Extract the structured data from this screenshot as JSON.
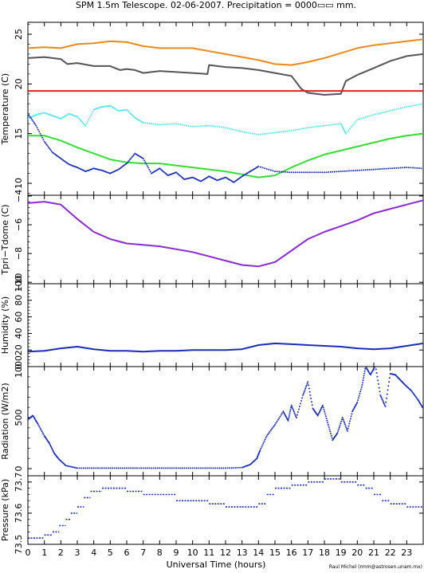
{
  "chart_data": {
    "title": "SPM 1.5m Telescope. 02-06-2007. Precipitation = 0000▭▭ mm.",
    "xlabel": "Universal Time (hours)",
    "credit": "Raul Michel (rmm@astrosen.unam.mx)",
    "xlim": [
      0,
      24
    ],
    "x_ticks": [
      0,
      1,
      2,
      3,
      4,
      5,
      6,
      7,
      8,
      9,
      10,
      11,
      12,
      13,
      14,
      15,
      16,
      17,
      18,
      19,
      20,
      21,
      22,
      23
    ],
    "x_tick_labels": [
      "0",
      "1",
      "2",
      "3",
      "4",
      "5",
      "6",
      "7",
      "8",
      "9",
      "10",
      "11",
      "12",
      "13",
      "14",
      "15",
      "16",
      "17",
      "18",
      "19",
      "20",
      "21",
      "22",
      "23"
    ],
    "panels": [
      {
        "id": "temperature",
        "type": "line",
        "ylabel": "Temperature (C)",
        "ylim": [
          8.8,
          26.2
        ],
        "y_ticks": [
          10,
          15,
          20,
          25
        ],
        "y_tick_labels": [
          "10",
          "15",
          "20",
          "25"
        ],
        "series": [
          {
            "color": "#e8891c",
            "style": "line",
            "x": [
              0,
              1,
              2,
              2.5,
              3,
              4,
              5,
              6,
              7,
              8,
              9,
              10,
              11,
              12,
              13,
              14,
              15,
              16,
              17,
              18,
              19,
              20,
              21,
              22,
              23,
              24
            ],
            "y": [
              23.6,
              23.7,
              23.6,
              23.8,
              24.0,
              24.1,
              24.3,
              24.2,
              23.8,
              23.6,
              23.6,
              23.6,
              23.3,
              23.0,
              22.7,
              22.4,
              22.0,
              21.9,
              22.2,
              22.6,
              23.1,
              23.6,
              23.9,
              24.1,
              24.3,
              24.5
            ]
          },
          {
            "color": "#555555",
            "style": "line",
            "x": [
              0,
              1,
              2,
              2.4,
              3,
              4,
              5,
              5.6,
              6,
              6.5,
              7,
              8,
              9,
              10,
              10.9,
              11,
              12,
              13,
              14,
              15,
              16,
              16.6,
              17,
              18,
              19,
              19.3,
              20,
              21,
              22,
              23,
              24
            ],
            "y": [
              22.6,
              22.7,
              22.5,
              22.0,
              22.1,
              21.8,
              21.8,
              21.4,
              21.5,
              21.4,
              21.1,
              21.3,
              21.2,
              21.1,
              21.0,
              21.9,
              21.7,
              21.6,
              21.4,
              21.1,
              20.8,
              19.5,
              19.1,
              18.9,
              19.0,
              20.3,
              20.9,
              21.6,
              22.3,
              22.8,
              23.0
            ]
          },
          {
            "color": "#dd2222",
            "style": "line",
            "x": [
              0,
              24
            ],
            "y": [
              19.3,
              19.3
            ]
          },
          {
            "color": "#55e6ea",
            "style": "dots",
            "x": [
              0,
              0.5,
              1,
              1.5,
              2,
              2.5,
              3,
              3.5,
              4,
              4.5,
              5,
              5.5,
              6,
              6.5,
              7,
              8,
              9,
              10,
              11,
              12,
              13,
              14,
              15,
              16,
              17,
              18,
              19,
              19.3,
              20,
              21,
              22,
              23,
              24
            ],
            "y": [
              16.5,
              16.9,
              17.1,
              16.8,
              16.5,
              17.0,
              16.7,
              15.8,
              17.4,
              17.7,
              17.8,
              17.3,
              17.4,
              16.6,
              16.1,
              15.9,
              16.0,
              15.7,
              15.8,
              15.6,
              15.2,
              14.9,
              15.1,
              15.3,
              15.6,
              15.8,
              16.0,
              15.0,
              16.4,
              16.9,
              17.3,
              17.7,
              18.0
            ]
          },
          {
            "color": "#33dd33",
            "style": "line",
            "x": [
              0,
              1,
              2,
              3,
              4,
              5,
              6,
              7,
              8,
              9,
              10,
              11,
              12,
              13,
              14,
              15,
              16,
              17,
              18,
              19,
              20,
              21,
              22,
              23,
              24
            ],
            "y": [
              14.8,
              14.8,
              14.3,
              13.6,
              13.0,
              12.4,
              12.1,
              12.0,
              12.0,
              11.8,
              11.6,
              11.4,
              11.2,
              10.9,
              10.6,
              10.8,
              11.6,
              12.3,
              12.9,
              13.3,
              13.7,
              14.1,
              14.5,
              14.8,
              15.0
            ]
          },
          {
            "color": "#1a2eb5",
            "style": "dots",
            "x": [
              0,
              0.5,
              1,
              1.5,
              2,
              2.5,
              3,
              3.5,
              4,
              4.5,
              5,
              5.5,
              6,
              6.5,
              7,
              7.5,
              8,
              8.5,
              9,
              9.5,
              10,
              10.5,
              11,
              11.5,
              12,
              12.5,
              13,
              13.5,
              14,
              15,
              16,
              17,
              18,
              19,
              20,
              21,
              22,
              23,
              24
            ],
            "y": [
              17.0,
              15.8,
              14.2,
              13.1,
              12.5,
              11.9,
              11.6,
              11.2,
              11.5,
              11.3,
              11.0,
              11.4,
              12.0,
              13.0,
              12.5,
              11.0,
              11.5,
              10.8,
              11.1,
              10.4,
              10.6,
              10.2,
              10.7,
              10.3,
              10.6,
              10.1,
              10.7,
              11.2,
              11.7,
              11.2,
              11.1,
              11.1,
              11.1,
              11.2,
              11.3,
              11.4,
              11.5,
              11.6,
              11.5
            ]
          }
        ]
      },
      {
        "id": "tdiff",
        "type": "line",
        "ylabel": "Tpri−Tdome (C)",
        "ylim": [
          -10.1,
          -3.95
        ],
        "y_ticks": [
          -10,
          -8,
          -6,
          -4
        ],
        "y_tick_labels": [
          "−10",
          "−8",
          "−6",
          "−4"
        ],
        "series": [
          {
            "color": "#8a2bd2",
            "style": "line",
            "x": [
              0,
              1,
              2,
              3,
              4,
              5,
              6,
              7,
              8,
              9,
              10,
              11,
              12,
              13,
              14,
              15,
              16,
              17,
              18,
              19,
              20,
              21,
              22,
              23,
              24
            ],
            "y": [
              -4.5,
              -4.4,
              -4.6,
              -5.6,
              -6.5,
              -7.0,
              -7.3,
              -7.4,
              -7.5,
              -7.7,
              -7.9,
              -8.2,
              -8.5,
              -8.8,
              -8.9,
              -8.6,
              -7.8,
              -7.0,
              -6.5,
              -6.1,
              -5.7,
              -5.2,
              -4.9,
              -4.6,
              -4.3
            ]
          }
        ]
      },
      {
        "id": "humidity",
        "type": "line",
        "ylabel": "Humidity (%)",
        "ylim": [
          0,
          100
        ],
        "y_ticks": [
          0,
          20,
          40,
          60,
          80,
          100
        ],
        "y_tick_labels": [
          "0",
          "20",
          "40",
          "60",
          "80",
          "100"
        ],
        "series": [
          {
            "color": "#1a2eb5",
            "style": "line",
            "x": [
              0,
              1,
              2,
              3,
              4,
              5,
              6,
              7,
              8,
              9,
              10,
              11,
              12,
              13,
              14,
              15,
              16,
              17,
              18,
              19,
              20,
              21,
              22,
              23,
              24
            ],
            "y": [
              18,
              19,
              22,
              24,
              21,
              19,
              19,
              18,
              19,
              19,
              20,
              20,
              20,
              21,
              26,
              28,
              27,
              26,
              25,
              24,
              22,
              21,
              22,
              25,
              28
            ]
          }
        ]
      },
      {
        "id": "radiation",
        "type": "scatter",
        "ylabel": "Radiation (W/m2)",
        "ylim": [
          -70,
          1000
        ],
        "y_ticks": [
          0,
          500,
          1000
        ],
        "y_tick_labels": [
          "0",
          "500",
          "1000"
        ],
        "series": [
          {
            "color": "#1a2eb5",
            "style": "dots",
            "x": [
              0,
              0.3,
              0.6,
              1.0,
              1.3,
              1.6,
              1.9,
              2.3,
              3,
              4,
              5,
              6,
              7,
              8,
              9,
              10,
              11,
              12,
              13,
              13.5,
              13.9,
              14.1,
              14.5,
              15,
              15.5,
              15.8,
              16,
              16.3,
              16.7,
              17,
              17.3,
              17.6,
              17.9,
              18.2,
              18.5,
              18.8,
              19.1,
              19.4,
              19.7,
              20,
              20.3,
              20.5,
              20.8,
              21.1,
              21.4,
              21.7,
              22,
              22.3,
              22.6,
              22.9,
              23.3,
              23.7,
              24
            ],
            "y": [
              480,
              520,
              440,
              320,
              250,
              150,
              90,
              30,
              5,
              5,
              5,
              5,
              5,
              5,
              5,
              5,
              5,
              5,
              10,
              40,
              100,
              180,
              320,
              430,
              560,
              470,
              620,
              500,
              720,
              850,
              590,
              520,
              620,
              450,
              280,
              350,
              500,
              370,
              560,
              650,
              820,
              1000,
              920,
              1010,
              720,
              610,
              930,
              920,
              870,
              820,
              760,
              670,
              590
            ]
          }
        ]
      },
      {
        "id": "pressure",
        "type": "scatter",
        "ylabel": "Pressure (kPa)",
        "ylim": [
          73.5,
          73.72
        ],
        "y_ticks": [
          73.5,
          73.6,
          73.7
        ],
        "y_tick_labels": [
          "73.5",
          "73.6",
          "73.7"
        ],
        "series": [
          {
            "color": "#1a2eb5",
            "style": "steps",
            "x": [
              0,
              1,
              1.5,
              1.9,
              2.3,
              2.6,
              3,
              3.4,
              3.8,
              4.5,
              6,
              7,
              9,
              10,
              11,
              12,
              13,
              14,
              14.5,
              15,
              16,
              17,
              18,
              19,
              20,
              20.5,
              21,
              21.5,
              22,
              23,
              24
            ],
            "y": [
              73.52,
              73.53,
              73.54,
              73.56,
              73.58,
              73.6,
              73.62,
              73.65,
              73.67,
              73.68,
              73.67,
              73.66,
              73.64,
              73.64,
              73.63,
              73.62,
              73.62,
              73.63,
              73.66,
              73.68,
              73.69,
              73.7,
              73.71,
              73.7,
              73.69,
              73.68,
              73.66,
              73.64,
              73.63,
              73.62,
              73.61
            ]
          }
        ]
      }
    ]
  }
}
